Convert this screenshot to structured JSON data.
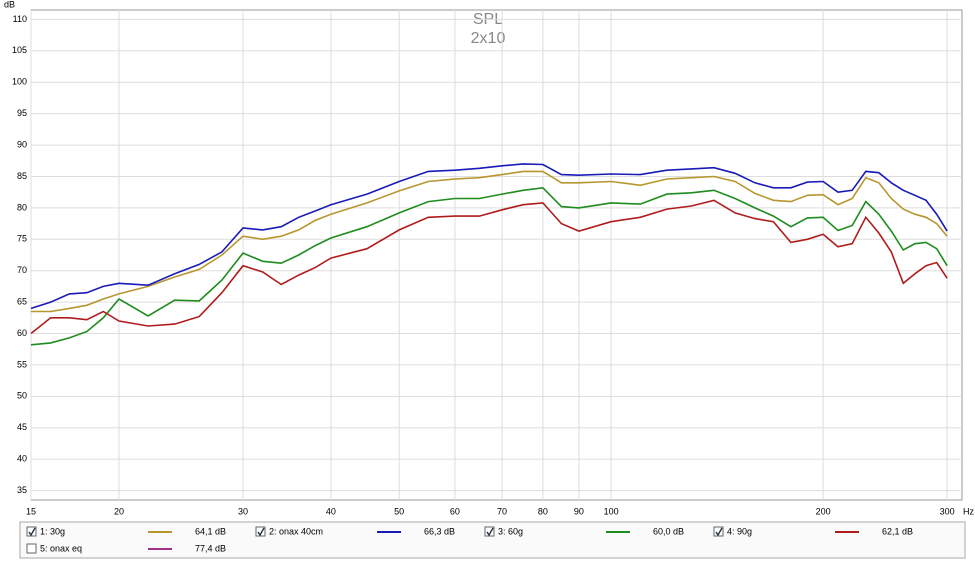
{
  "chart_data": {
    "type": "line",
    "title": "SPL",
    "subtitle": "2x10",
    "y_unit": "dB",
    "x_unit": "Hz",
    "x_log": true,
    "grid": true,
    "x": [
      15,
      16,
      17,
      18,
      19,
      20,
      22,
      24,
      26,
      28,
      30,
      32,
      34,
      36,
      38,
      40,
      45,
      50,
      55,
      60,
      65,
      70,
      75,
      80,
      85,
      90,
      100,
      110,
      120,
      130,
      140,
      150,
      160,
      170,
      180,
      190,
      200,
      210,
      220,
      230,
      240,
      250,
      260,
      270,
      280,
      290,
      300
    ],
    "xlim": [
      15,
      315
    ],
    "xticks": [
      15,
      20,
      30,
      40,
      50,
      60,
      70,
      80,
      90,
      100,
      200,
      300
    ],
    "ylim": [
      33.5,
      111.5
    ],
    "yticks": [
      35,
      40,
      45,
      50,
      55,
      60,
      65,
      70,
      75,
      80,
      85,
      90,
      95,
      100,
      105,
      110
    ],
    "series": [
      {
        "name": "1: 30g",
        "color": "#b8962e",
        "checked": true,
        "level": {
          "value": 64.1,
          "label": "64,1 dB"
        },
        "values": [
          63.5,
          63.5,
          64,
          64.5,
          65.5,
          66.3,
          67.5,
          69,
          70.2,
          72.5,
          75.5,
          75,
          75.5,
          76.5,
          78,
          79,
          80.8,
          82.7,
          84.2,
          84.6,
          84.8,
          85.3,
          85.8,
          85.8,
          84,
          84,
          84.2,
          83.6,
          84.6,
          84.8,
          85,
          84.2,
          82.3,
          81.2,
          81,
          82,
          82.1,
          80.5,
          81.5,
          84.8,
          84,
          81.5,
          79.8,
          79,
          78.5,
          77.5,
          75.5
        ]
      },
      {
        "name": "2: onax 40cm",
        "color": "#1a1ab8",
        "checked": true,
        "level": {
          "value": 66.3,
          "label": "66,3 dB"
        },
        "values": [
          64,
          65,
          66.3,
          66.5,
          67.5,
          68,
          67.7,
          69.5,
          71,
          73,
          76.8,
          76.5,
          77,
          78.5,
          79.5,
          80.5,
          82.2,
          84.2,
          85.8,
          86,
          86.3,
          86.7,
          87,
          86.9,
          85.3,
          85.2,
          85.4,
          85.3,
          86,
          86.2,
          86.4,
          85.5,
          84,
          83.2,
          83.2,
          84.1,
          84.2,
          82.5,
          82.8,
          85.8,
          85.6,
          84,
          82.8,
          82,
          81.2,
          79,
          76.3
        ]
      },
      {
        "name": "3: 60g",
        "color": "#1e8c1e",
        "checked": true,
        "level": {
          "value": 60.0,
          "label": "60,0 dB"
        },
        "values": [
          58.2,
          58.5,
          59.3,
          60.3,
          62.5,
          65.5,
          62.8,
          65.3,
          65.2,
          68.5,
          72.8,
          71.5,
          71.2,
          72.5,
          74,
          75.2,
          77,
          79.2,
          81,
          81.5,
          81.5,
          82.2,
          82.8,
          83.2,
          80.2,
          80,
          80.8,
          80.6,
          82.2,
          82.4,
          82.8,
          81.5,
          80,
          78.7,
          77,
          78.4,
          78.5,
          76.4,
          77.2,
          81,
          79,
          76.3,
          73.3,
          74.3,
          74.5,
          73.5,
          70.8
        ]
      },
      {
        "name": "4: 90g",
        "color": "#b01c1c",
        "checked": true,
        "level": {
          "value": 62.1,
          "label": "62,1 dB"
        },
        "values": [
          60,
          62.5,
          62.5,
          62.2,
          63.5,
          62,
          61.2,
          61.5,
          62.7,
          66.5,
          70.8,
          69.8,
          67.8,
          69.3,
          70.5,
          72,
          73.5,
          76.5,
          78.5,
          78.7,
          78.7,
          79.7,
          80.5,
          80.8,
          77.5,
          76.3,
          77.8,
          78.5,
          79.8,
          80.3,
          81.2,
          79.2,
          78.3,
          77.8,
          74.5,
          75,
          75.8,
          73.8,
          74.3,
          78.5,
          76,
          73,
          68,
          69.5,
          70.8,
          71.3,
          68.8
        ]
      },
      {
        "name": "5: onax eq",
        "color": "#a03090",
        "checked": false,
        "level": {
          "value": 77.4,
          "label": "77,4 dB"
        }
      }
    ]
  }
}
